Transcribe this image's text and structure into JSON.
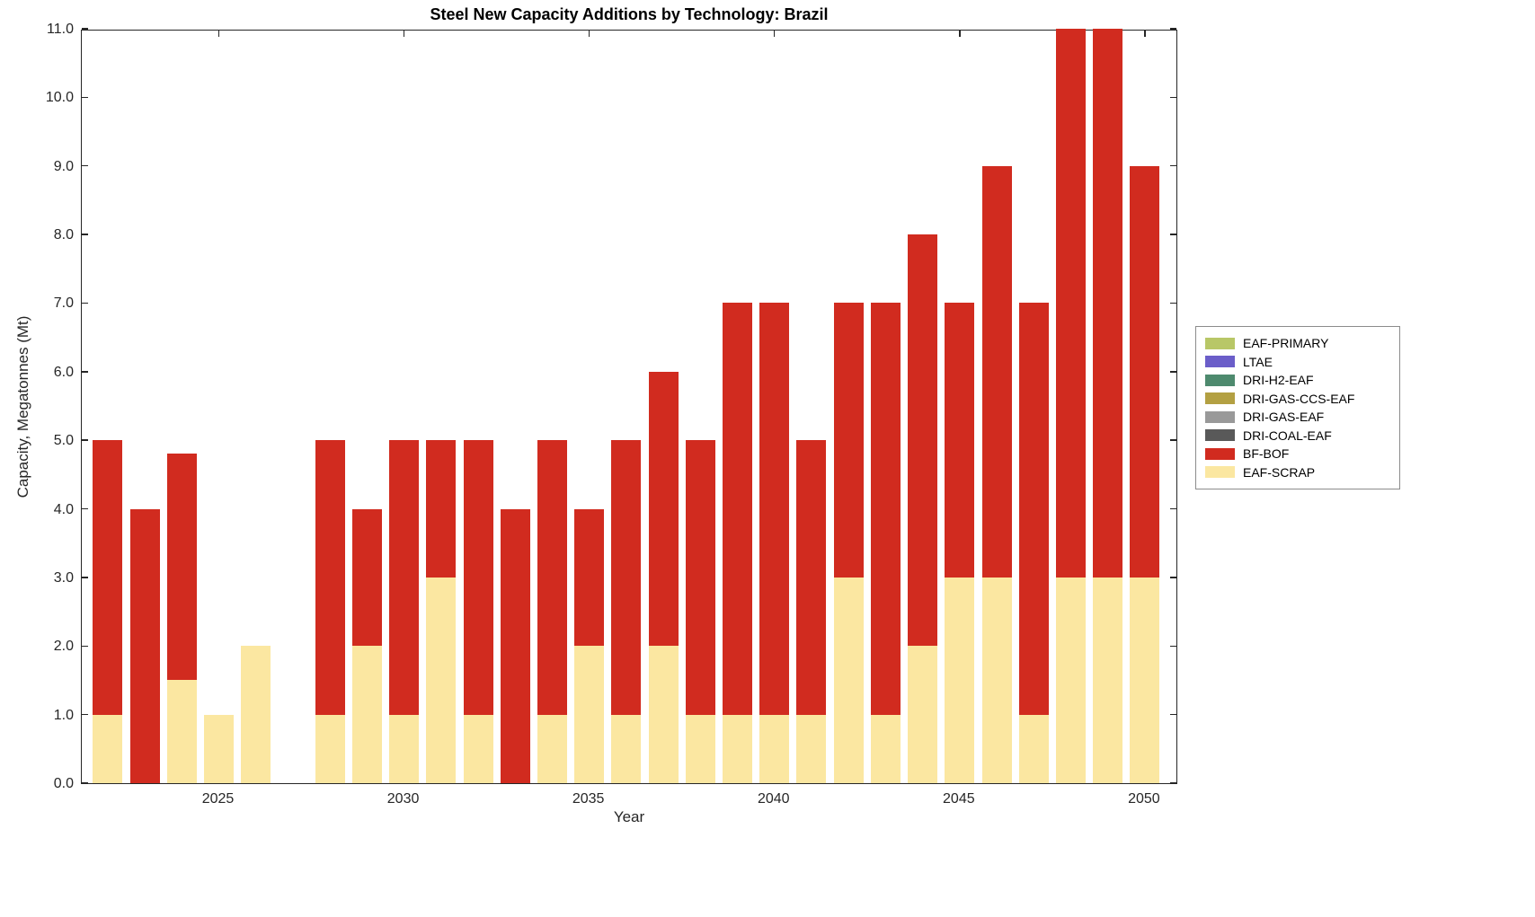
{
  "chart_data": {
    "type": "bar",
    "stacked": true,
    "title": "Steel New Capacity Additions by Technology: Brazil",
    "xlabel": "Year",
    "ylabel": "Capacity, Megatonnes (Mt)",
    "ylim": [
      0,
      11
    ],
    "xlim": [
      2021.3,
      2050.9
    ],
    "grid": false,
    "legend_position": "right-outside",
    "yticks": [
      "0.0",
      "1.0",
      "2.0",
      "3.0",
      "4.0",
      "5.0",
      "6.0",
      "7.0",
      "8.0",
      "9.0",
      "10.0",
      "11.0"
    ],
    "xticks": [
      2025,
      2030,
      2035,
      2040,
      2045,
      2050
    ],
    "categories": [
      2022,
      2023,
      2024,
      2025,
      2026,
      2027,
      2028,
      2029,
      2030,
      2031,
      2032,
      2033,
      2034,
      2035,
      2036,
      2037,
      2038,
      2039,
      2040,
      2041,
      2042,
      2043,
      2044,
      2045,
      2046,
      2047,
      2048,
      2049,
      2050
    ],
    "series": [
      {
        "name": "EAF-SCRAP",
        "color": "#fbe7a1",
        "values": [
          1,
          0,
          1.5,
          1,
          2,
          0,
          1,
          2,
          1,
          3,
          1,
          0,
          1,
          2,
          1,
          2,
          1,
          1,
          1,
          1,
          3,
          1,
          2,
          3,
          3,
          1,
          3,
          3,
          3
        ]
      },
      {
        "name": "BF-BOF",
        "color": "#d12b1f",
        "values": [
          4,
          4,
          3.3,
          0,
          0,
          0,
          4,
          2,
          4,
          2,
          4,
          4,
          4,
          2,
          4,
          4,
          4,
          6,
          6,
          4,
          4,
          6,
          6,
          4,
          6,
          6,
          8,
          8,
          6
        ]
      }
    ],
    "totals": [
      5,
      4,
      4.8,
      1,
      2,
      0,
      5,
      4,
      5,
      5,
      5,
      4,
      5,
      4,
      5,
      6,
      5,
      7,
      7,
      5,
      7,
      7,
      8,
      7,
      9,
      7,
      11,
      11,
      9
    ],
    "legend": [
      {
        "label": "EAF-PRIMARY",
        "color": "#b8c767"
      },
      {
        "label": "LTAE",
        "color": "#6b5ec9"
      },
      {
        "label": "DRI-H2-EAF",
        "color": "#4e8a6e"
      },
      {
        "label": "DRI-GAS-CCS-EAF",
        "color": "#b3a042"
      },
      {
        "label": "DRI-GAS-EAF",
        "color": "#999999"
      },
      {
        "label": "DRI-COAL-EAF",
        "color": "#595959"
      },
      {
        "label": "BF-BOF",
        "color": "#d12b1f"
      },
      {
        "label": "EAF-SCRAP",
        "color": "#fbe7a1"
      }
    ]
  }
}
